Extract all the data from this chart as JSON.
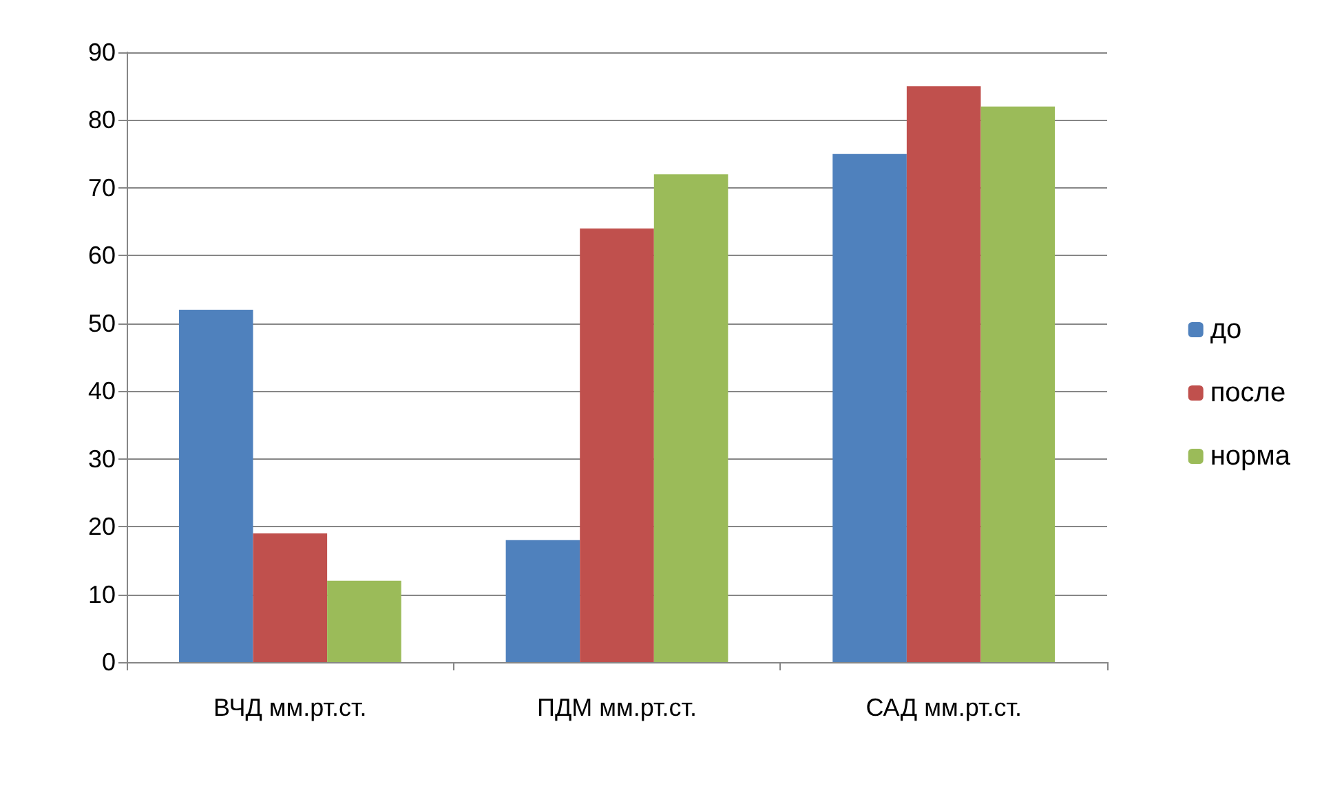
{
  "chart_data": {
    "type": "bar",
    "categories": [
      "ВЧД мм.рт.ст.",
      "ПДМ мм.рт.ст.",
      "САД мм.рт.ст."
    ],
    "series": [
      {
        "name": "до",
        "color": "#4f81bd",
        "values": [
          52,
          18,
          75
        ]
      },
      {
        "name": "после",
        "color": "#c0504d",
        "values": [
          19,
          64,
          85
        ]
      },
      {
        "name": "норма",
        "color": "#9bbb59",
        "values": [
          12,
          72,
          82
        ]
      }
    ],
    "ylim": [
      0,
      90
    ],
    "yticks": [
      0,
      10,
      20,
      30,
      40,
      50,
      60,
      70,
      80,
      90
    ],
    "grid": "y",
    "legend": "right"
  }
}
